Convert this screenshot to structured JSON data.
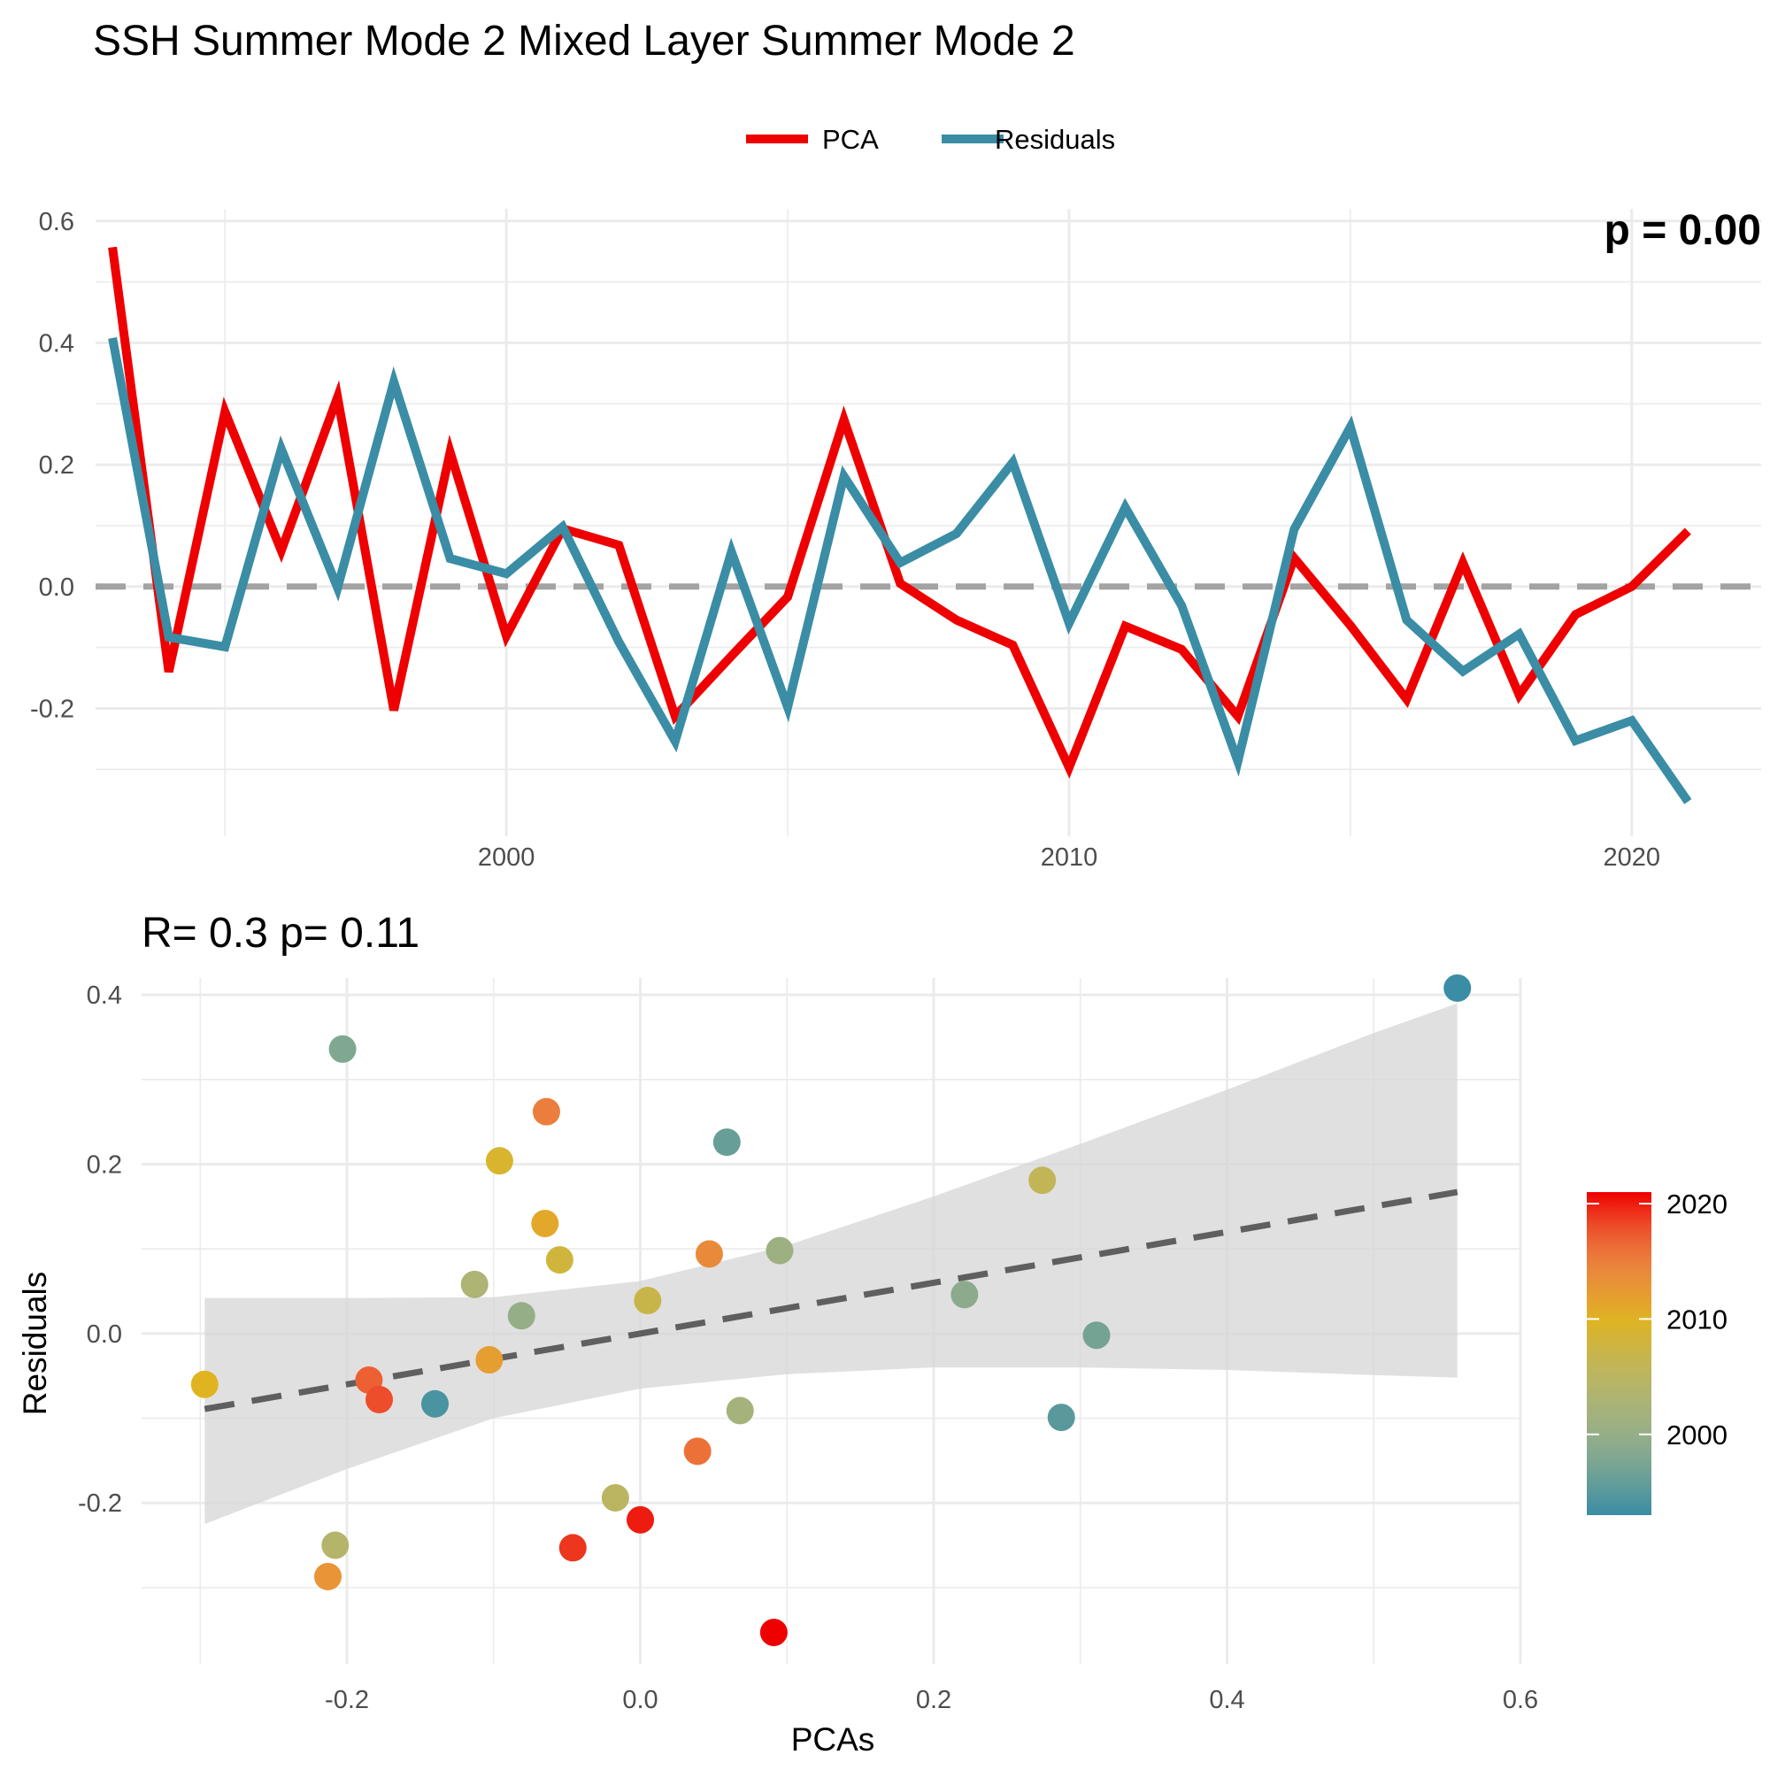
{
  "figure_title": "SSH Summer Mode 2 Mixed Layer Summer Mode 2",
  "chart_data": [
    {
      "type": "line",
      "title": "",
      "xlabel": "",
      "ylabel": "",
      "x_ticks": [
        2000,
        2010,
        2020
      ],
      "y_ticks": [
        "-0.2",
        "0.0",
        "0.2",
        "0.4",
        "0.6"
      ],
      "xlim": [
        1992.7,
        2022.3
      ],
      "ylim": [
        -0.41,
        0.62
      ],
      "reference_line": 0.0,
      "corner_annotation": "p = 0.00",
      "legend": {
        "position": "top",
        "entries": [
          "PCA",
          "Residuals"
        ]
      },
      "x": [
        1993,
        1994,
        1995,
        1996,
        1997,
        1998,
        1999,
        2000,
        2001,
        2002,
        2003,
        2004,
        2005,
        2006,
        2007,
        2008,
        2009,
        2010,
        2011,
        2012,
        2013,
        2014,
        2015,
        2016,
        2017,
        2018,
        2019,
        2020,
        2021
      ],
      "series": [
        {
          "name": "PCA",
          "color": "#ee0000",
          "values": [
            0.557,
            -0.14,
            0.287,
            0.059,
            0.311,
            -0.203,
            0.221,
            -0.081,
            0.095,
            0.068,
            -0.213,
            -0.114,
            -0.017,
            0.274,
            0.005,
            -0.055,
            -0.096,
            -0.297,
            -0.065,
            -0.103,
            -0.213,
            0.047,
            -0.064,
            -0.185,
            0.039,
            -0.178,
            -0.046,
            0.0,
            0.091
          ]
        },
        {
          "name": "Residuals",
          "color": "#3a8da5",
          "values": [
            0.408,
            -0.083,
            -0.099,
            0.226,
            -0.002,
            0.336,
            0.046,
            0.021,
            0.098,
            -0.091,
            -0.254,
            0.057,
            -0.198,
            0.181,
            0.039,
            0.087,
            0.204,
            -0.06,
            0.13,
            -0.031,
            -0.287,
            0.094,
            0.262,
            -0.055,
            -0.139,
            -0.078,
            -0.253,
            -0.22,
            -0.353
          ]
        }
      ]
    },
    {
      "type": "scatter",
      "title": "R= 0.3  p= 0.11",
      "xlabel": "PCAs",
      "ylabel": "Residuals",
      "x_ticks": [
        "-0.2",
        "0.0",
        "0.2",
        "0.4",
        "0.6"
      ],
      "y_ticks": [
        "-0.2",
        "0.0",
        "0.2",
        "0.4"
      ],
      "xlim": [
        -0.34,
        0.6
      ],
      "ylim": [
        -0.39,
        0.42
      ],
      "grid": true,
      "fit": {
        "type": "linear",
        "intercept": 0.0,
        "slope": 0.3,
        "x_range": [
          -0.297,
          0.557
        ]
      },
      "confidence_band": {
        "x": [
          -0.297,
          -0.2,
          -0.1,
          0.0,
          0.1,
          0.2,
          0.3,
          0.4,
          0.5,
          0.557
        ],
        "lower": [
          -0.225,
          -0.16,
          -0.1,
          -0.065,
          -0.048,
          -0.04,
          -0.04,
          -0.043,
          -0.049,
          -0.052
        ],
        "upper": [
          0.042,
          0.042,
          0.043,
          0.062,
          0.104,
          0.162,
          0.224,
          0.288,
          0.355,
          0.39
        ]
      },
      "colorbar": {
        "position": "right",
        "ticks": [
          2000,
          2010,
          2020
        ],
        "range": [
          1993,
          2021
        ],
        "colors": [
          "#3a8da5",
          "#e0b420",
          "#ee0000"
        ]
      },
      "points": [
        {
          "year": 1993,
          "x": 0.557,
          "y": 0.408
        },
        {
          "year": 1994,
          "x": -0.14,
          "y": -0.083
        },
        {
          "year": 1995,
          "x": 0.287,
          "y": -0.099
        },
        {
          "year": 1996,
          "x": 0.059,
          "y": 0.226
        },
        {
          "year": 1997,
          "x": 0.311,
          "y": -0.002
        },
        {
          "year": 1998,
          "x": -0.203,
          "y": 0.336
        },
        {
          "year": 1999,
          "x": 0.221,
          "y": 0.046
        },
        {
          "year": 2000,
          "x": -0.081,
          "y": 0.021
        },
        {
          "year": 2001,
          "x": 0.095,
          "y": 0.098
        },
        {
          "year": 2002,
          "x": 0.068,
          "y": -0.091
        },
        {
          "year": 2003,
          "x": -0.113,
          "y": 0.058
        },
        {
          "year": 2004,
          "x": -0.208,
          "y": -0.25
        },
        {
          "year": 2005,
          "x": -0.017,
          "y": -0.194
        },
        {
          "year": 2006,
          "x": 0.274,
          "y": 0.181
        },
        {
          "year": 2007,
          "x": 0.005,
          "y": 0.039
        },
        {
          "year": 2008,
          "x": -0.055,
          "y": 0.087
        },
        {
          "year": 2009,
          "x": -0.096,
          "y": 0.204
        },
        {
          "year": 2010,
          "x": -0.297,
          "y": -0.06
        },
        {
          "year": 2011,
          "x": -0.065,
          "y": 0.13
        },
        {
          "year": 2012,
          "x": -0.103,
          "y": -0.031
        },
        {
          "year": 2013,
          "x": -0.213,
          "y": -0.287
        },
        {
          "year": 2014,
          "x": 0.047,
          "y": 0.094
        },
        {
          "year": 2015,
          "x": -0.064,
          "y": 0.262
        },
        {
          "year": 2016,
          "x": 0.039,
          "y": -0.139
        },
        {
          "year": 2017,
          "x": -0.185,
          "y": -0.055
        },
        {
          "year": 2018,
          "x": -0.178,
          "y": -0.078
        },
        {
          "year": 2019,
          "x": -0.046,
          "y": -0.253
        },
        {
          "year": 2020,
          "x": 0.0,
          "y": -0.22
        },
        {
          "year": 2021,
          "x": 0.091,
          "y": -0.353
        }
      ]
    }
  ]
}
